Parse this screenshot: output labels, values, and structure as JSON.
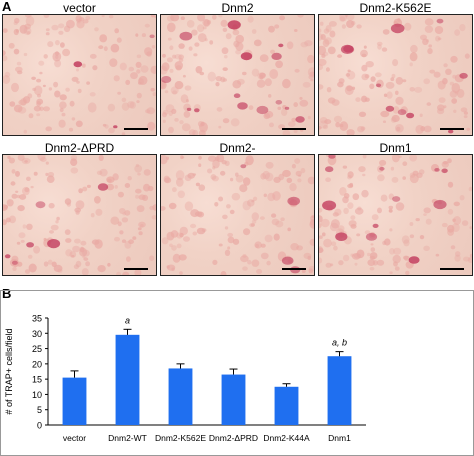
{
  "panel_a": {
    "letter": "A",
    "images": [
      {
        "title": "vector"
      },
      {
        "title": "Dnm2"
      },
      {
        "title": "Dnm2-K562E"
      },
      {
        "title": "Dnm2-ΔPRD"
      },
      {
        "title": "Dnm2-"
      },
      {
        "title": "Dnm1"
      }
    ]
  },
  "panel_b": {
    "letter": "B"
  },
  "colors": {
    "bar": "#1f6ff0",
    "stain": "#c23a5c",
    "cells": "#e9a9a3",
    "background": "#f3d8cd"
  },
  "chart_data": {
    "type": "bar",
    "categories": [
      "vector",
      "Dnm2-WT",
      "Dnm2-K562E",
      "Dnm2-ΔPRD",
      "Dnm2-K44A",
      "Dnm1"
    ],
    "values": [
      15.5,
      29.5,
      18.5,
      16.5,
      12.5,
      22.5
    ],
    "errors": [
      2.2,
      1.8,
      1.5,
      1.8,
      1.0,
      1.5
    ],
    "annotations": [
      "",
      "a",
      "",
      "",
      "",
      "a, b"
    ],
    "ylabel": "# of TRAP+ cells/field",
    "ylim": [
      0,
      35
    ],
    "yticks": [
      "0",
      "5",
      "10",
      "15",
      "20",
      "25",
      "30",
      "35"
    ],
    "grid": false
  }
}
